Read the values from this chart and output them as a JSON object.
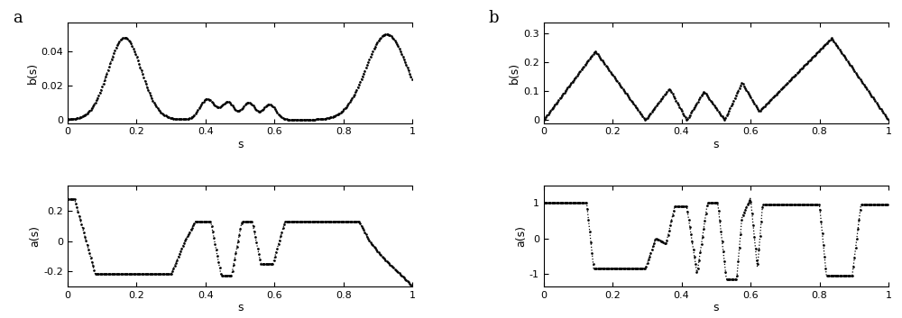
{
  "panel_a_label": "a",
  "panel_b_label": "b",
  "xlabel": "s",
  "ylabel_b": "b(s)",
  "ylabel_a": "a(s)",
  "figsize": [
    10.0,
    3.53
  ],
  "dpi": 100
}
